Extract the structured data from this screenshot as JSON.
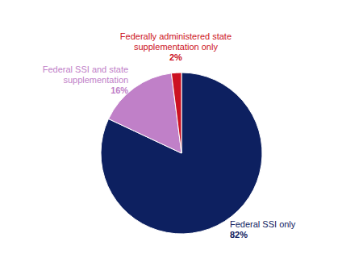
{
  "chart_data": {
    "type": "pie",
    "categories": [
      "Federal SSI only",
      "Federal SSI and state\nsupplementation",
      "Federally administered state\nsupplementation only"
    ],
    "values": [
      82,
      16,
      2
    ],
    "value_labels": [
      "82%",
      "16%",
      "2%"
    ],
    "colors": [
      "#0d2060",
      "#c080c8",
      "#cc1122"
    ]
  }
}
